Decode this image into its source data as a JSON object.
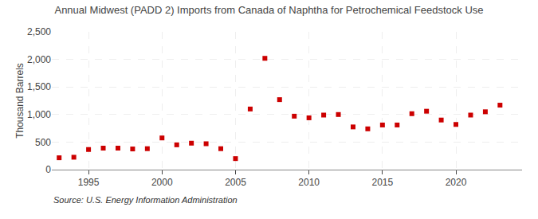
{
  "chart_data": {
    "type": "scatter",
    "title": "Annual Midwest (PADD 2) Imports from Canada of Naphtha for Petrochemical Feedstock Use",
    "y_label": "Thousand Barrels",
    "annotations": [
      "Source: U.S. Energy Information Administration"
    ],
    "x": [
      1993,
      1994,
      1995,
      1996,
      1997,
      1998,
      1999,
      2000,
      2001,
      2002,
      2003,
      2004,
      2005,
      2006,
      2007,
      2008,
      2009,
      2010,
      2011,
      2012,
      2013,
      2014,
      2015,
      2016,
      2017,
      2018,
      2019,
      2020,
      2021,
      2022,
      2023
    ],
    "values": [
      215,
      225,
      365,
      390,
      390,
      375,
      380,
      575,
      450,
      480,
      470,
      380,
      200,
      1100,
      2020,
      1270,
      970,
      940,
      990,
      1000,
      775,
      740,
      810,
      810,
      1015,
      1060,
      900,
      820,
      990,
      1050,
      1170
    ],
    "color": "#cc0000",
    "marker": "square",
    "xlim": [
      1992.5,
      2024.5
    ],
    "xticks": [
      1995,
      2000,
      2005,
      2010,
      2015,
      2020
    ],
    "ylim": [
      0,
      2500
    ],
    "yticks": [
      0,
      500,
      {
        "value": 1000,
        "label": "1,000"
      },
      {
        "value": 1500,
        "label": "1,500"
      },
      {
        "value": 2000,
        "label": "2,000"
      },
      {
        "value": 2500,
        "label": "2,500"
      }
    ],
    "grid": true
  }
}
